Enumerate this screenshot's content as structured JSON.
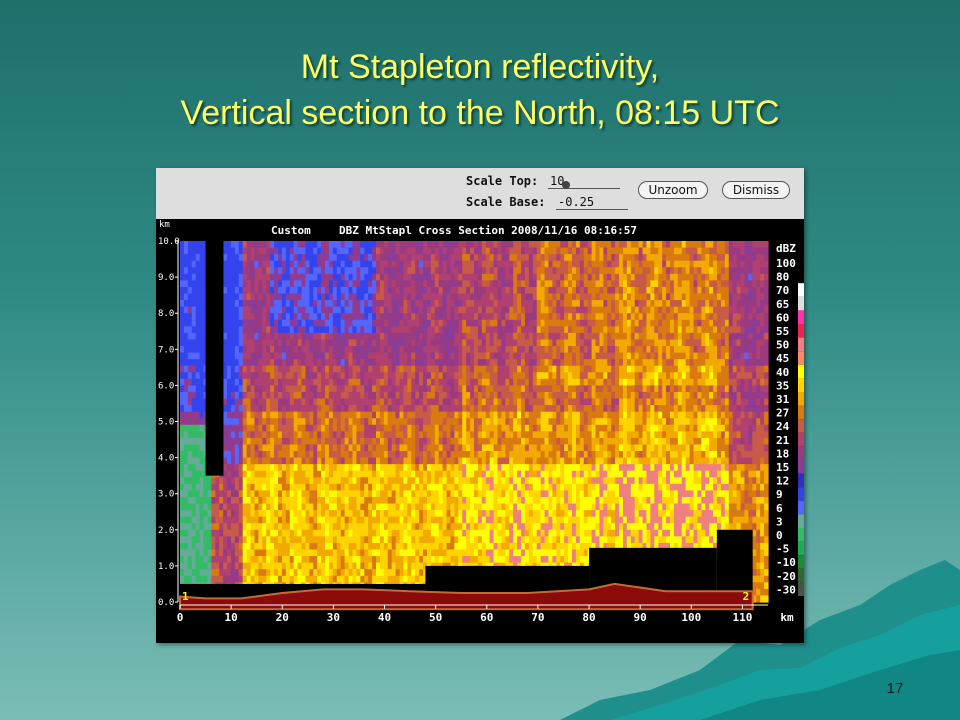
{
  "slide": {
    "title_line1": "Mt Stapleton reflectivity,",
    "title_line2": "Vertical section to the North, 08:15 UTC",
    "page_number": "17"
  },
  "toolbar": {
    "scale_top_label": "Scale Top:",
    "scale_top_value": "10",
    "scale_base_label": "Scale Base:",
    "scale_base_value": "-0.25",
    "unzoom_label": "Unzoom",
    "dismiss_label": "Dismiss"
  },
  "chart_data": {
    "type": "heatmap",
    "title": "Custom  DBZ MtStapl Cross Section 2008/11/16 08:16:57",
    "header_left": "Custom",
    "header_right": "DBZ MtStapl Cross Section 2008/11/16 08:16:57",
    "xlabel": "km",
    "ylabel": "km",
    "xlim": [
      0,
      115
    ],
    "ylim": [
      0,
      10
    ],
    "x_ticks": [
      0,
      10,
      20,
      30,
      40,
      50,
      60,
      70,
      80,
      90,
      100,
      110
    ],
    "y_ticks": [
      "0.0",
      "1.0",
      "2.0",
      "3.0",
      "4.0",
      "5.0",
      "6.0",
      "7.0",
      "8.0",
      "9.0",
      "10.0"
    ],
    "endpoint_labels": [
      "1",
      "2"
    ],
    "colorbar": {
      "unit": "dBZ",
      "levels": [
        "100",
        "80",
        "70",
        "65",
        "60",
        "55",
        "50",
        "45",
        "40",
        "35",
        "31",
        "27",
        "24",
        "21",
        "18",
        "15",
        "12",
        "9",
        "6",
        "3",
        "0",
        "-5",
        "-10",
        "-20",
        "-30"
      ],
      "colors": [
        "#000000",
        "#000000",
        "#ffffff",
        "#dddddd",
        "#ff33aa",
        "#ee2255",
        "#f08080",
        "#ff8866",
        "#ffff00",
        "#ffd400",
        "#f2a900",
        "#d97a10",
        "#c85a48",
        "#b04070",
        "#9a3a80",
        "#8a3c96",
        "#3030c0",
        "#3344ee",
        "#5566ff",
        "#66aa99",
        "#33bb66",
        "#22aa55",
        "#228833",
        "#336633",
        "#445544"
      ]
    },
    "terrain_top_km": [
      0.15,
      0.1,
      0.1,
      0.25,
      0.35,
      0.35,
      0.3,
      0.25,
      0.25,
      0.35,
      0.5,
      0.3,
      0.3
    ],
    "terrain_x_km": [
      0,
      5,
      12,
      20,
      28,
      36,
      45,
      55,
      68,
      80,
      85,
      95,
      112
    ],
    "beam_blockage": [
      {
        "x_start": 0,
        "x_end": 48,
        "top_km": 0.5
      },
      {
        "x_start": 48,
        "x_end": 80,
        "top_km": 1.0
      },
      {
        "x_start": 80,
        "x_end": 105,
        "top_km": 1.5
      },
      {
        "x_start": 105,
        "x_end": 112,
        "top_km": 2.0
      }
    ]
  }
}
